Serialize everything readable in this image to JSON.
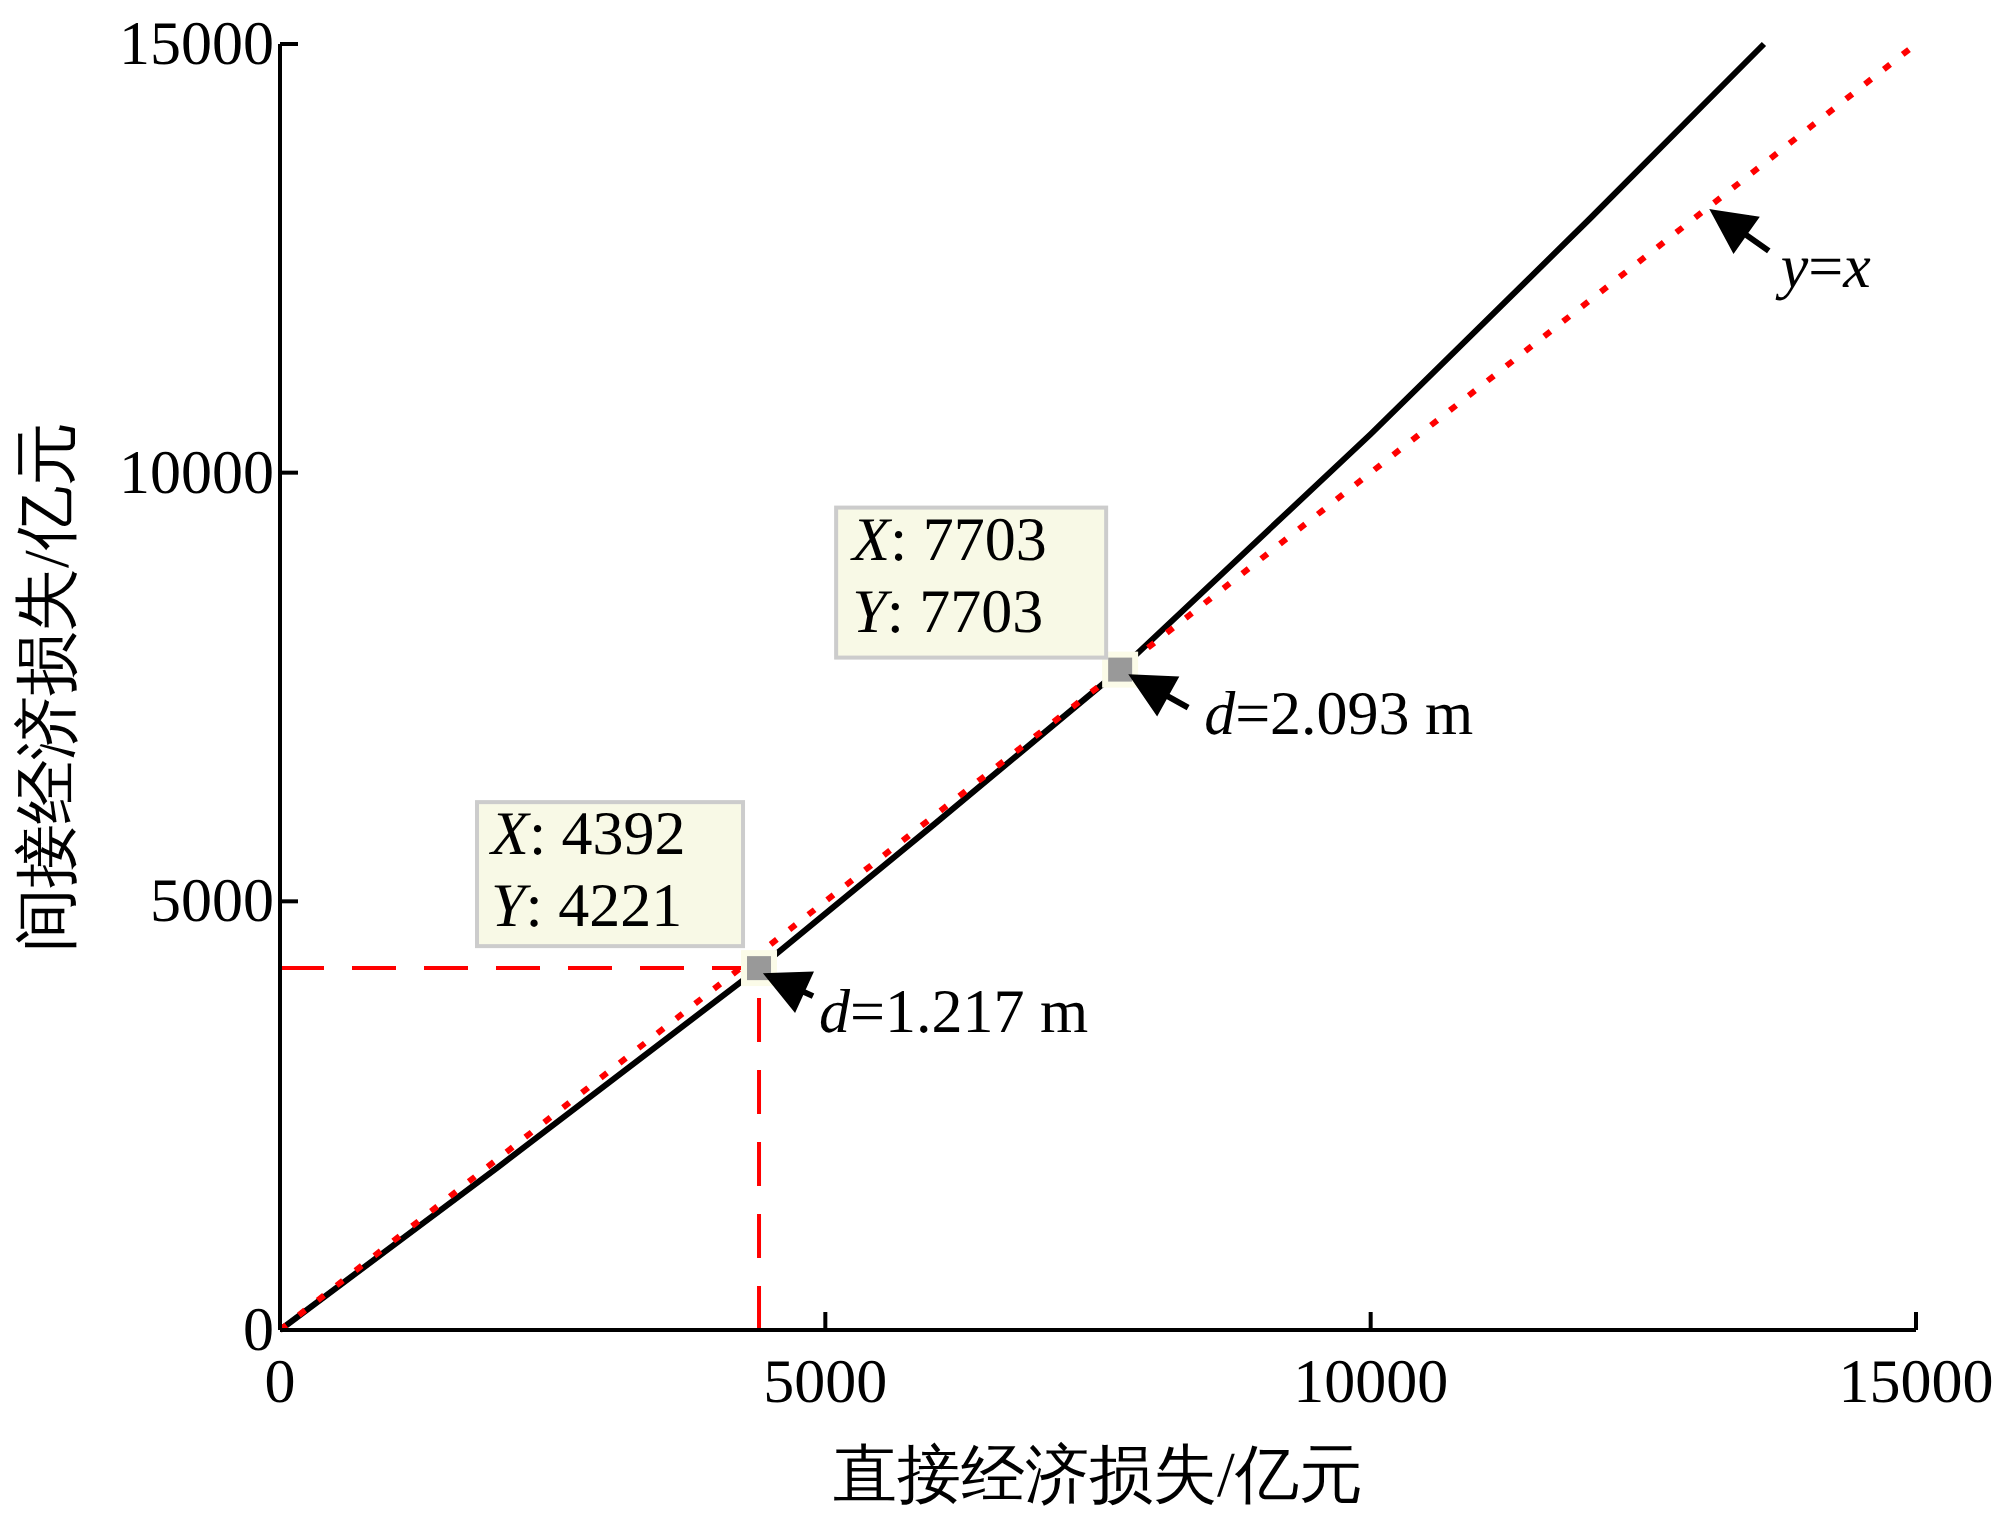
{
  "chart_data": {
    "type": "line",
    "xlabel": "直接经济损失/亿元",
    "ylabel": "间接经济损失/亿元",
    "xlim": [
      0,
      15000
    ],
    "ylim": [
      0,
      15000
    ],
    "xticks": [
      0,
      5000,
      10000,
      15000
    ],
    "yticks": [
      0,
      5000,
      10000,
      15000
    ],
    "series": [
      {
        "color": "#000000",
        "line_style": "solid",
        "x": [
          0,
          2000,
          4392,
          6000,
          7703,
          10000,
          12000,
          13606
        ],
        "values": [
          0,
          1900,
          4221,
          5900,
          7703,
          10450,
          12950,
          15000
        ]
      },
      {
        "color": "#ff0000",
        "line_style": "dotted",
        "x": [
          0,
          15000
        ],
        "values": [
          0,
          15000
        ]
      },
      {
        "type": "scatter",
        "color": "#999999",
        "marker": "square",
        "x": [
          4392,
          7703
        ],
        "values": [
          4221,
          7703
        ]
      }
    ],
    "ref_lines": [
      {
        "axis": "x",
        "value": 4392,
        "color": "#ff0000",
        "line_style": "dashed"
      },
      {
        "axis": "y",
        "value": 4221,
        "color": "#ff0000",
        "line_style": "dashed"
      }
    ],
    "annotations": [
      {
        "text": "*X*: 4392",
        "x": 4392,
        "y": 4221
      },
      {
        "text": "*Y*: 4221",
        "x": 4392,
        "y": 4221
      },
      {
        "text": "*d*=1.217 m",
        "x": 4392,
        "y": 4221
      },
      {
        "text": "*X*: 7703",
        "x": 7703,
        "y": 7703
      },
      {
        "text": "*Y*: 7703",
        "x": 7703,
        "y": 7703
      },
      {
        "text": "*d*=2.093 m",
        "x": 7703,
        "y": 7703
      },
      {
        "text": "*y*=*x*",
        "x": 13100,
        "y": 13100
      }
    ]
  }
}
